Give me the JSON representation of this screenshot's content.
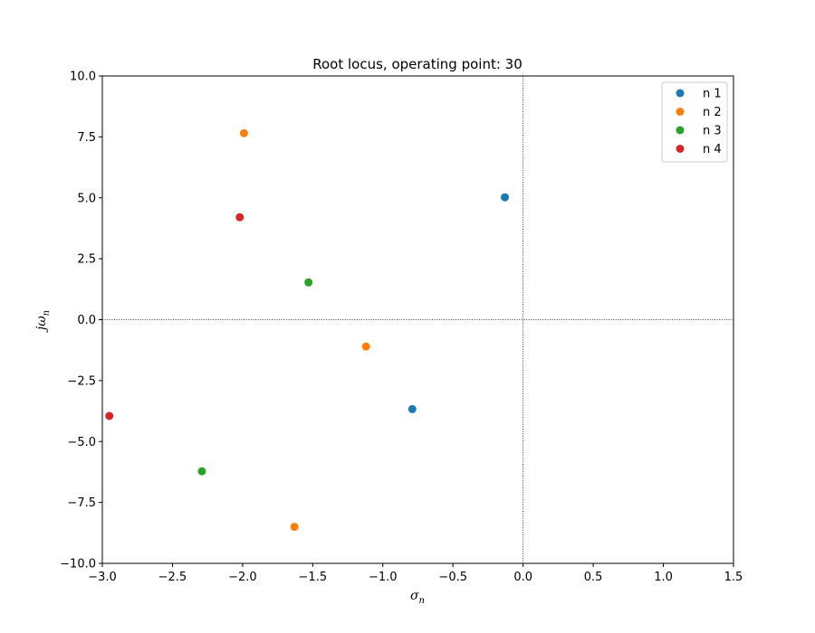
{
  "chart_data": {
    "type": "scatter",
    "title": "Root locus, operating point: 30",
    "xlabel": {
      "base": "σ",
      "sub": "n"
    },
    "ylabel": {
      "prefix": "j",
      "base": "ω",
      "sub": "n"
    },
    "xlim": [
      -3.0,
      1.5
    ],
    "ylim": [
      -10.0,
      10.0
    ],
    "xticks": [
      -3.0,
      -2.5,
      -2.0,
      -1.5,
      -1.0,
      -0.5,
      0.0,
      0.5,
      1.0,
      1.5
    ],
    "xtick_labels": [
      "−3.0",
      "−2.5",
      "−2.0",
      "−1.5",
      "−1.0",
      "−0.5",
      "0.0",
      "0.5",
      "1.0",
      "1.5"
    ],
    "yticks": [
      -10.0,
      -7.5,
      -5.0,
      -2.5,
      0.0,
      2.5,
      5.0,
      7.5,
      10.0
    ],
    "ytick_labels": [
      "−10.0",
      "−7.5",
      "−5.0",
      "−2.5",
      "0.0",
      "2.5",
      "5.0",
      "7.5",
      "10.0"
    ],
    "grid": false,
    "reference_lines": {
      "x": 0,
      "y": 0,
      "style": "dotted"
    },
    "legend": "top-right",
    "series": [
      {
        "name": "n 1",
        "color": "#1f77b4",
        "points": [
          [
            -0.13,
            5.02
          ],
          [
            -0.79,
            -3.67
          ]
        ]
      },
      {
        "name": "n 2",
        "color": "#ff7f0e",
        "points": [
          [
            -1.99,
            7.65
          ],
          [
            -1.12,
            -1.1
          ],
          [
            -1.63,
            -8.5
          ]
        ]
      },
      {
        "name": "n 3",
        "color": "#2ca02c",
        "points": [
          [
            -1.53,
            1.53
          ],
          [
            -2.29,
            -6.22
          ]
        ]
      },
      {
        "name": "n 4",
        "color": "#d62728",
        "points": [
          [
            -2.02,
            4.2
          ],
          [
            -2.95,
            -3.95
          ]
        ]
      }
    ]
  }
}
